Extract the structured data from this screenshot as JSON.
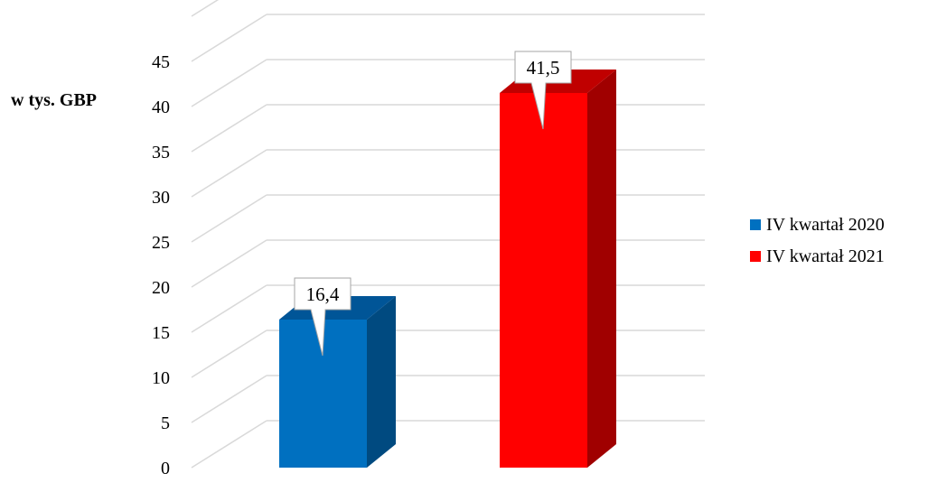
{
  "chart_data": {
    "type": "bar",
    "ylabel": "w tys. GBP",
    "ylim": [
      0,
      45
    ],
    "y_ticks": [
      0,
      5,
      10,
      15,
      20,
      25,
      30,
      35,
      40,
      45
    ],
    "grid": true,
    "legend_placement": "right",
    "series": [
      {
        "name": "IV kwartał 2020",
        "values": [
          16.4
        ],
        "label": "16,4",
        "color": "#0070C0",
        "side_color": "#004A80",
        "top_color": "#005597"
      },
      {
        "name": "IV kwartał 2021",
        "values": [
          41.5
        ],
        "label": "41,5",
        "color": "#FF0000",
        "side_color": "#A00000",
        "top_color": "#C00000"
      }
    ]
  }
}
